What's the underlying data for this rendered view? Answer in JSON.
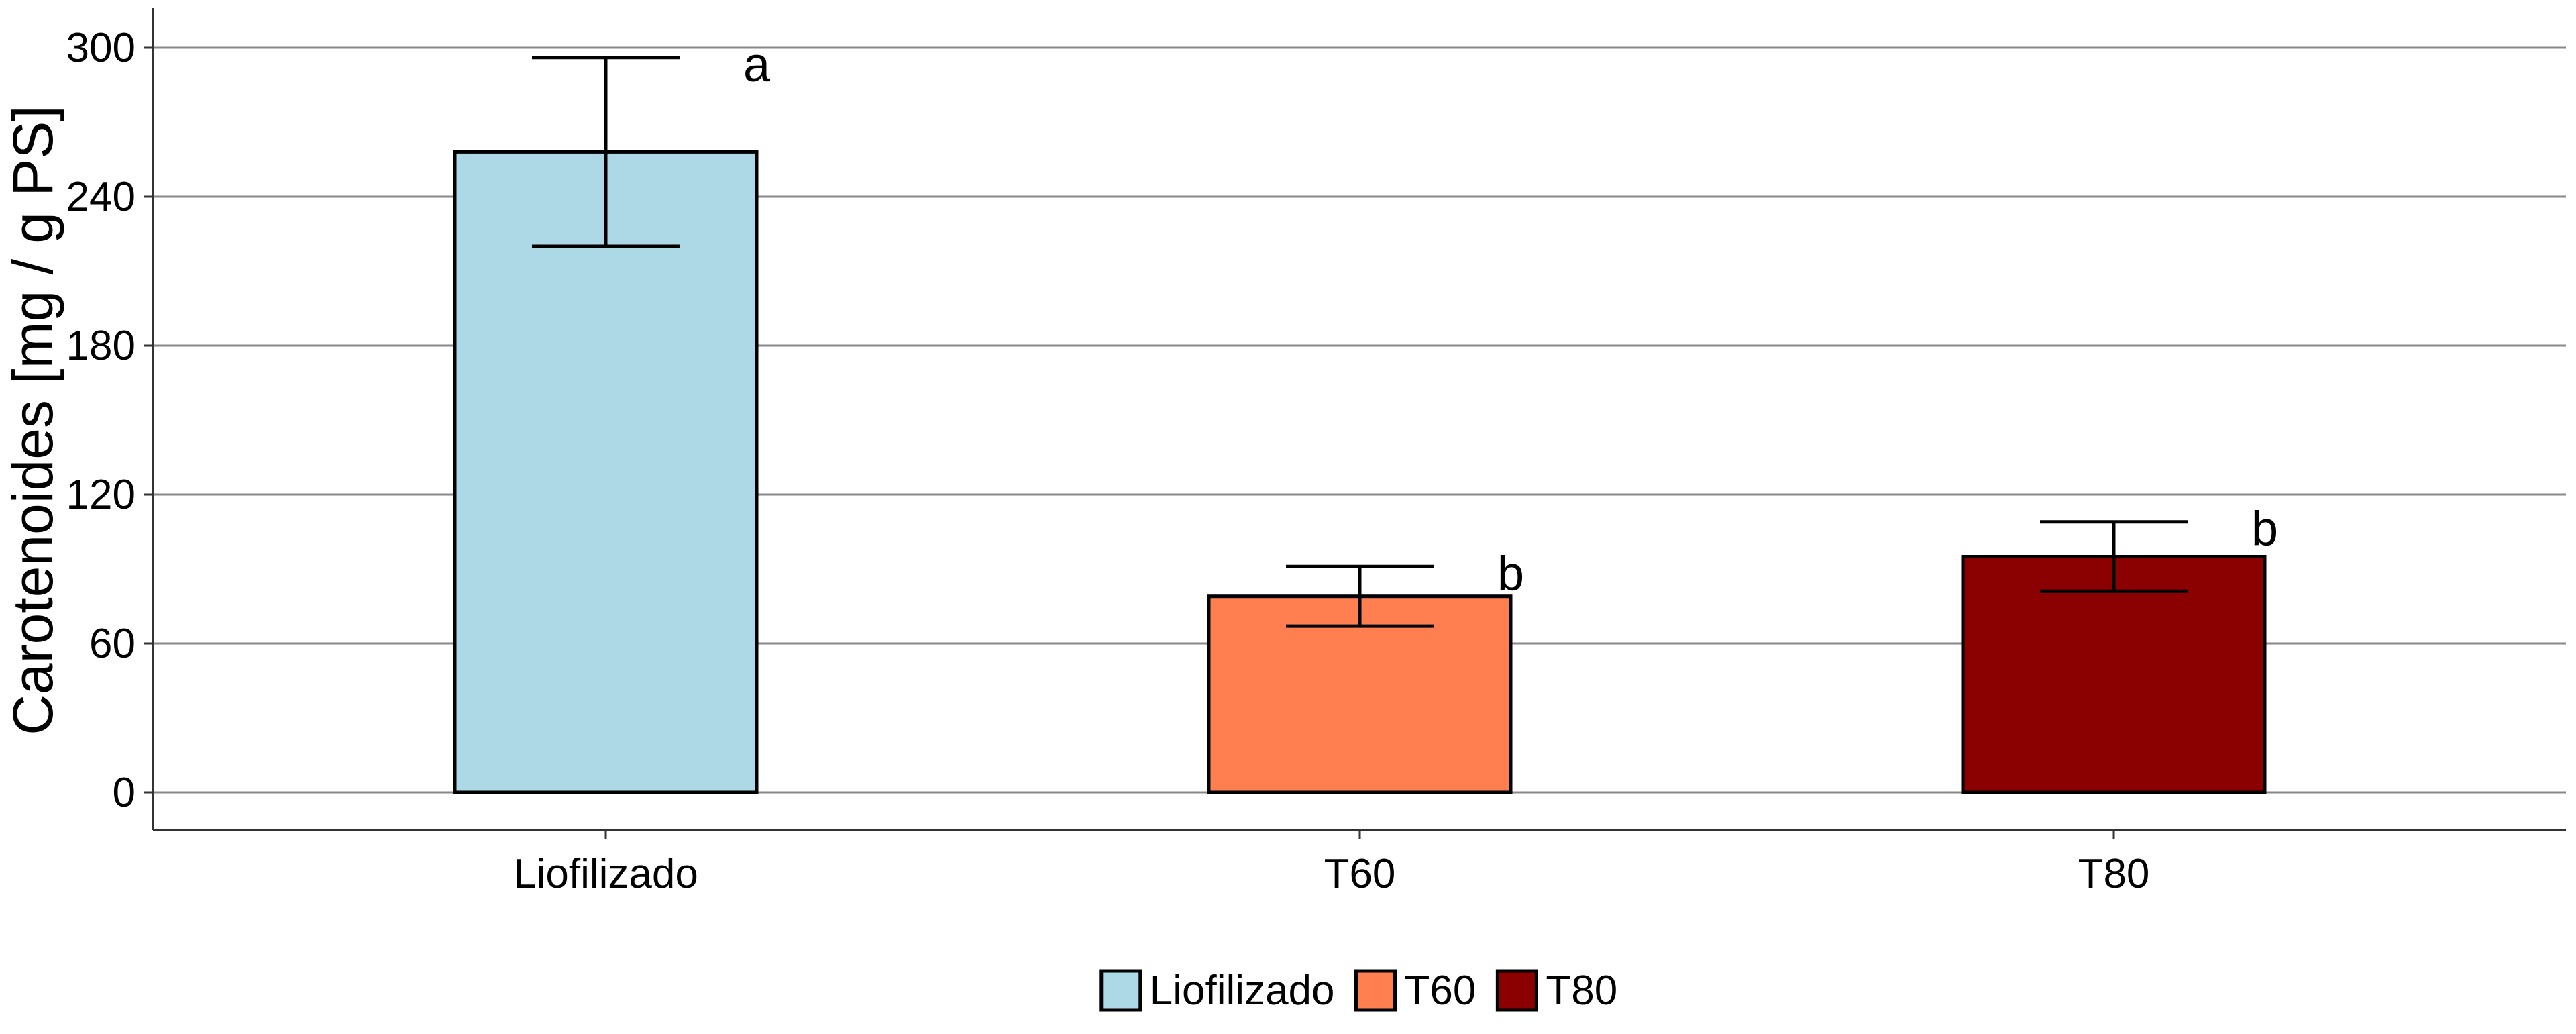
{
  "chart_data": {
    "type": "bar",
    "title": "",
    "xlabel": "",
    "ylabel": "Carotenoides [mg / g PS]",
    "ylim": [
      -15,
      315
    ],
    "yticks": [
      0,
      60,
      120,
      180,
      240,
      300
    ],
    "grid": true,
    "legend_position": "bottom",
    "categories": [
      "Liofilizado",
      "T60",
      "T80"
    ],
    "values": [
      258,
      79,
      95
    ],
    "error_low": [
      220,
      67,
      81
    ],
    "error_high": [
      296,
      91,
      109
    ],
    "significance": [
      "a",
      "b",
      "b"
    ],
    "colors": [
      "#ADD8E6",
      "#FF7F50",
      "#8B0000"
    ],
    "legend": [
      "Liofilizado",
      "T60",
      "T80"
    ]
  }
}
